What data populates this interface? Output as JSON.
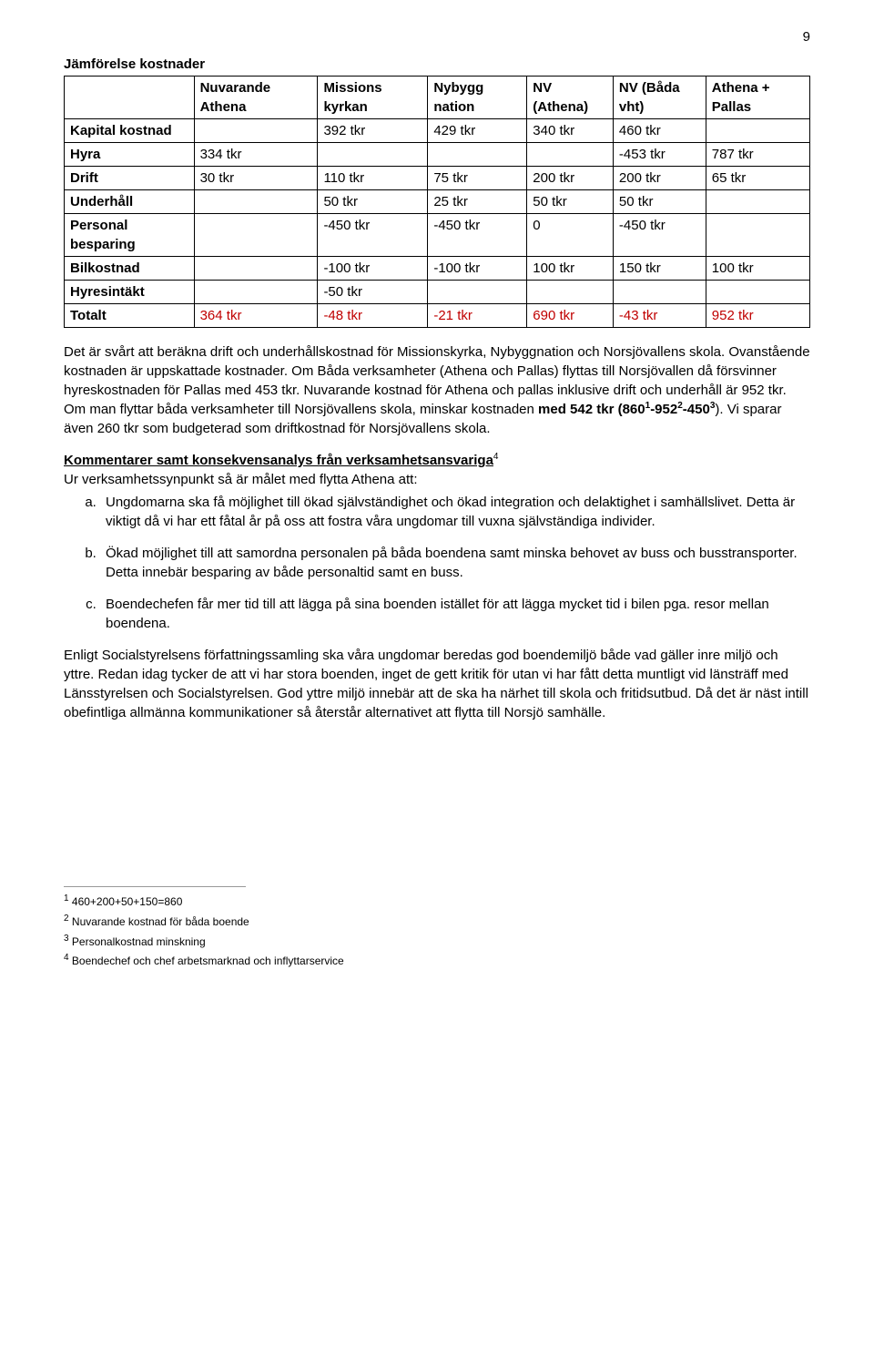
{
  "page_number": "9",
  "heading": "Jämförelse kostnader",
  "table": {
    "columns": [
      "",
      "Nuvarande Athena",
      "Missions kyrkan",
      "Nybygg nation",
      "NV (Athena)",
      "NV (Båda vht)",
      "Athena + Pallas"
    ],
    "rows": [
      {
        "label": "Kapital kostnad",
        "cells": [
          "",
          "392 tkr",
          "429 tkr",
          "340 tkr",
          "460 tkr",
          ""
        ]
      },
      {
        "label": "Hyra",
        "cells": [
          "334 tkr",
          "",
          "",
          "",
          "-453 tkr",
          "787 tkr"
        ]
      },
      {
        "label": "Drift",
        "cells": [
          "30 tkr",
          "110 tkr",
          "75 tkr",
          "200 tkr",
          "200 tkr",
          "65 tkr"
        ]
      },
      {
        "label": "Underhåll",
        "cells": [
          "",
          "50 tkr",
          "25 tkr",
          "50 tkr",
          "50 tkr",
          ""
        ]
      },
      {
        "label": "Personal besparing",
        "cells": [
          "",
          "-450 tkr",
          "-450 tkr",
          "0",
          "-450 tkr",
          ""
        ]
      },
      {
        "label": "Bilkostnad",
        "cells": [
          "",
          "-100 tkr",
          "-100 tkr",
          "100 tkr",
          "150 tkr",
          "100 tkr"
        ]
      },
      {
        "label": "Hyresintäkt",
        "cells": [
          "",
          "-50 tkr",
          "",
          "",
          "",
          ""
        ]
      },
      {
        "label": "Totalt",
        "cells": [
          "364 tkr",
          "-48 tkr",
          "-21 tkr",
          "690 tkr",
          "-43 tkr",
          "952 tkr"
        ],
        "red": true
      }
    ]
  },
  "para1_a": "Det är svårt att beräkna drift och underhållskostnad för Missionskyrka, Nybyggnation och Norsjövallens skola. Ovanstående kostnaden är uppskattade kostnader. Om Båda verksamheter (Athena och Pallas) flyttas till Norsjövallen då försvinner hyreskostnaden för Pallas med 453 tkr. Nuvarande kostnad för Athena och pallas inklusive drift och underhåll är 952 tkr. Om man flyttar båda verksamheter till Norsjövallens skola, minskar kostnaden ",
  "para1_bold": "med 542 tkr (860",
  "para1_sup1": "1",
  "para1_mid1": "-952",
  "para1_sup2": "2",
  "para1_mid2": "-450",
  "para1_sup3": "3",
  "para1_after": "). Vi sparar även 260 tkr som budgeterad som driftkostnad för Norsjövallens skola.",
  "komment_heading": "Kommentarer samt konsekvensanalys från verksamhetsansvariga",
  "komment_sup": "4",
  "komment_intro": "Ur verksamhetssynpunkt så är målet med flytta Athena att:",
  "list": [
    "Ungdomarna ska få möjlighet till ökad självständighet och ökad integration och delaktighet i samhällslivet. Detta är viktigt då vi har ett fåtal år på oss att fostra våra ungdomar till vuxna självständiga individer.",
    "Ökad möjlighet till att samordna personalen på båda boendena samt minska behovet av buss och busstransporter. Detta innebär besparing av både personaltid samt en buss.",
    "Boendechefen får mer tid till att lägga på sina boenden istället för att lägga mycket tid i bilen pga. resor mellan boendena."
  ],
  "para2": "Enligt Socialstyrelsens författningssamling ska våra ungdomar beredas god boendemiljö både vad gäller inre miljö och yttre. Redan idag tycker de att vi har stora boenden, inget de gett kritik för utan vi har fått detta muntligt vid länsträff med Länsstyrelsen och Socialstyrelsen. God yttre miljö innebär att de ska ha närhet till skola och fritidsutbud. Då det är näst intill obefintliga allmänna kommunikationer så återstår alternativet att flytta till Norsjö samhälle.",
  "footnotes": [
    {
      "n": "1",
      "t": "460+200+50+150=860"
    },
    {
      "n": "2",
      "t": "Nuvarande kostnad för båda boende"
    },
    {
      "n": "3",
      "t": "Personalkostnad minskning"
    },
    {
      "n": "4",
      "t": "Boendechef och chef arbetsmarknad och inflyttarservice"
    }
  ]
}
